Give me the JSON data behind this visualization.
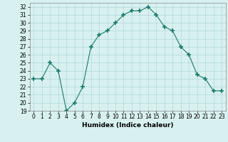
{
  "x": [
    0,
    1,
    2,
    3,
    4,
    5,
    6,
    7,
    8,
    9,
    10,
    11,
    12,
    13,
    14,
    15,
    16,
    17,
    18,
    19,
    20,
    21,
    22,
    23
  ],
  "y": [
    23,
    23,
    25,
    24,
    19,
    20,
    22,
    27,
    28.5,
    29,
    30,
    31,
    31.5,
    31.5,
    32,
    31,
    29.5,
    29,
    27,
    26,
    23.5,
    23,
    21.5,
    21.5
  ],
  "line_color": "#1a7a68",
  "marker": "+",
  "marker_size": 4,
  "bg_color": "#d8f0f0",
  "grid_color": "#b0d8d8",
  "xlabel": "Humidex (Indice chaleur)",
  "ylim": [
    19,
    32.5
  ],
  "xlim": [
    -0.5,
    23.5
  ],
  "yticks": [
    19,
    20,
    21,
    22,
    23,
    24,
    25,
    26,
    27,
    28,
    29,
    30,
    31,
    32
  ],
  "xticks": [
    0,
    1,
    2,
    3,
    4,
    5,
    6,
    7,
    8,
    9,
    10,
    11,
    12,
    13,
    14,
    15,
    16,
    17,
    18,
    19,
    20,
    21,
    22,
    23
  ],
  "label_fontsize": 6.5,
  "tick_fontsize": 5.5
}
